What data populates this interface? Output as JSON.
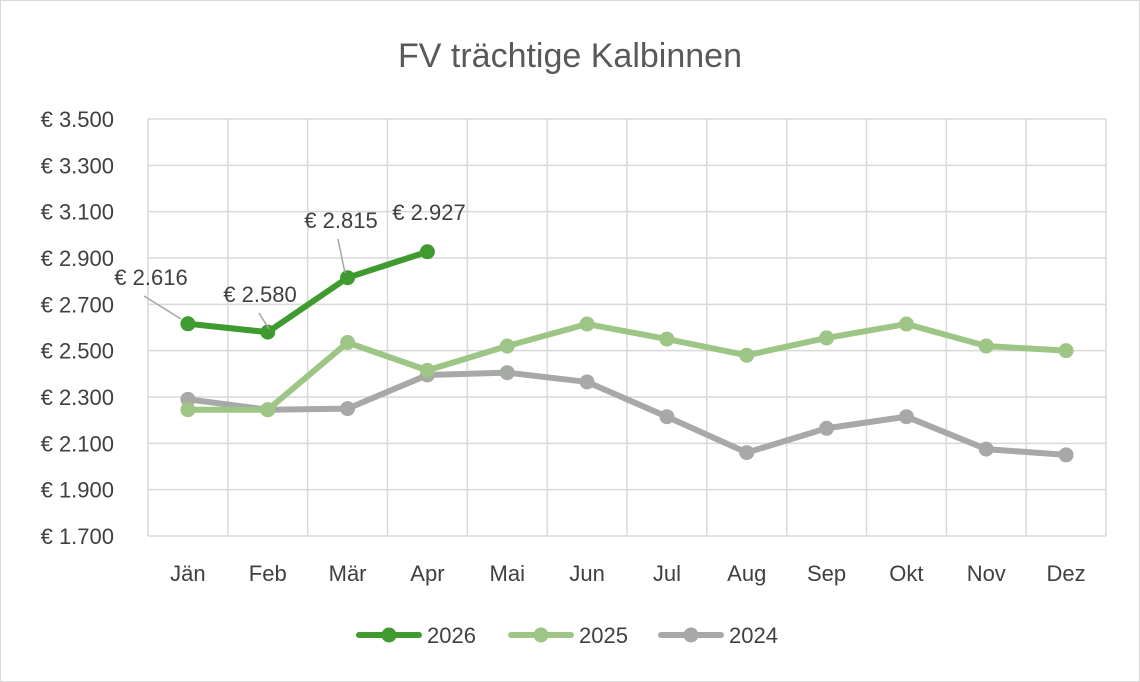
{
  "chart_data": {
    "type": "line",
    "title": "FV trächtige Kalbinnen",
    "xlabel": "",
    "ylabel": "",
    "categories": [
      "Jän",
      "Feb",
      "Mär",
      "Apr",
      "Mai",
      "Jun",
      "Jul",
      "Aug",
      "Sep",
      "Okt",
      "Nov",
      "Dez"
    ],
    "ylim": [
      1700,
      3500
    ],
    "ytick_step": 200,
    "y_tick_labels": [
      "€ 1.700",
      "€ 1.900",
      "€ 2.100",
      "€ 2.300",
      "€ 2.500",
      "€ 2.700",
      "€ 2.900",
      "€ 3.100",
      "€ 3.300",
      "€ 3.500"
    ],
    "grid": true,
    "legend_position": "bottom",
    "series": [
      {
        "name": "2026",
        "color": "#3f9b2f",
        "values": [
          2616,
          2580,
          2815,
          2927,
          null,
          null,
          null,
          null,
          null,
          null,
          null,
          null
        ],
        "data_labels": [
          "€ 2.616",
          "€ 2.580",
          "€ 2.815",
          "€ 2.927"
        ]
      },
      {
        "name": "2025",
        "color": "#9dc585",
        "values": [
          2245,
          2245,
          2535,
          2415,
          2520,
          2615,
          2550,
          2480,
          2555,
          2615,
          2520,
          2500
        ]
      },
      {
        "name": "2024",
        "color": "#a6a9a6",
        "values": [
          2290,
          2245,
          2250,
          2395,
          2405,
          2365,
          2215,
          2060,
          2165,
          2215,
          2075,
          2050
        ]
      }
    ]
  }
}
